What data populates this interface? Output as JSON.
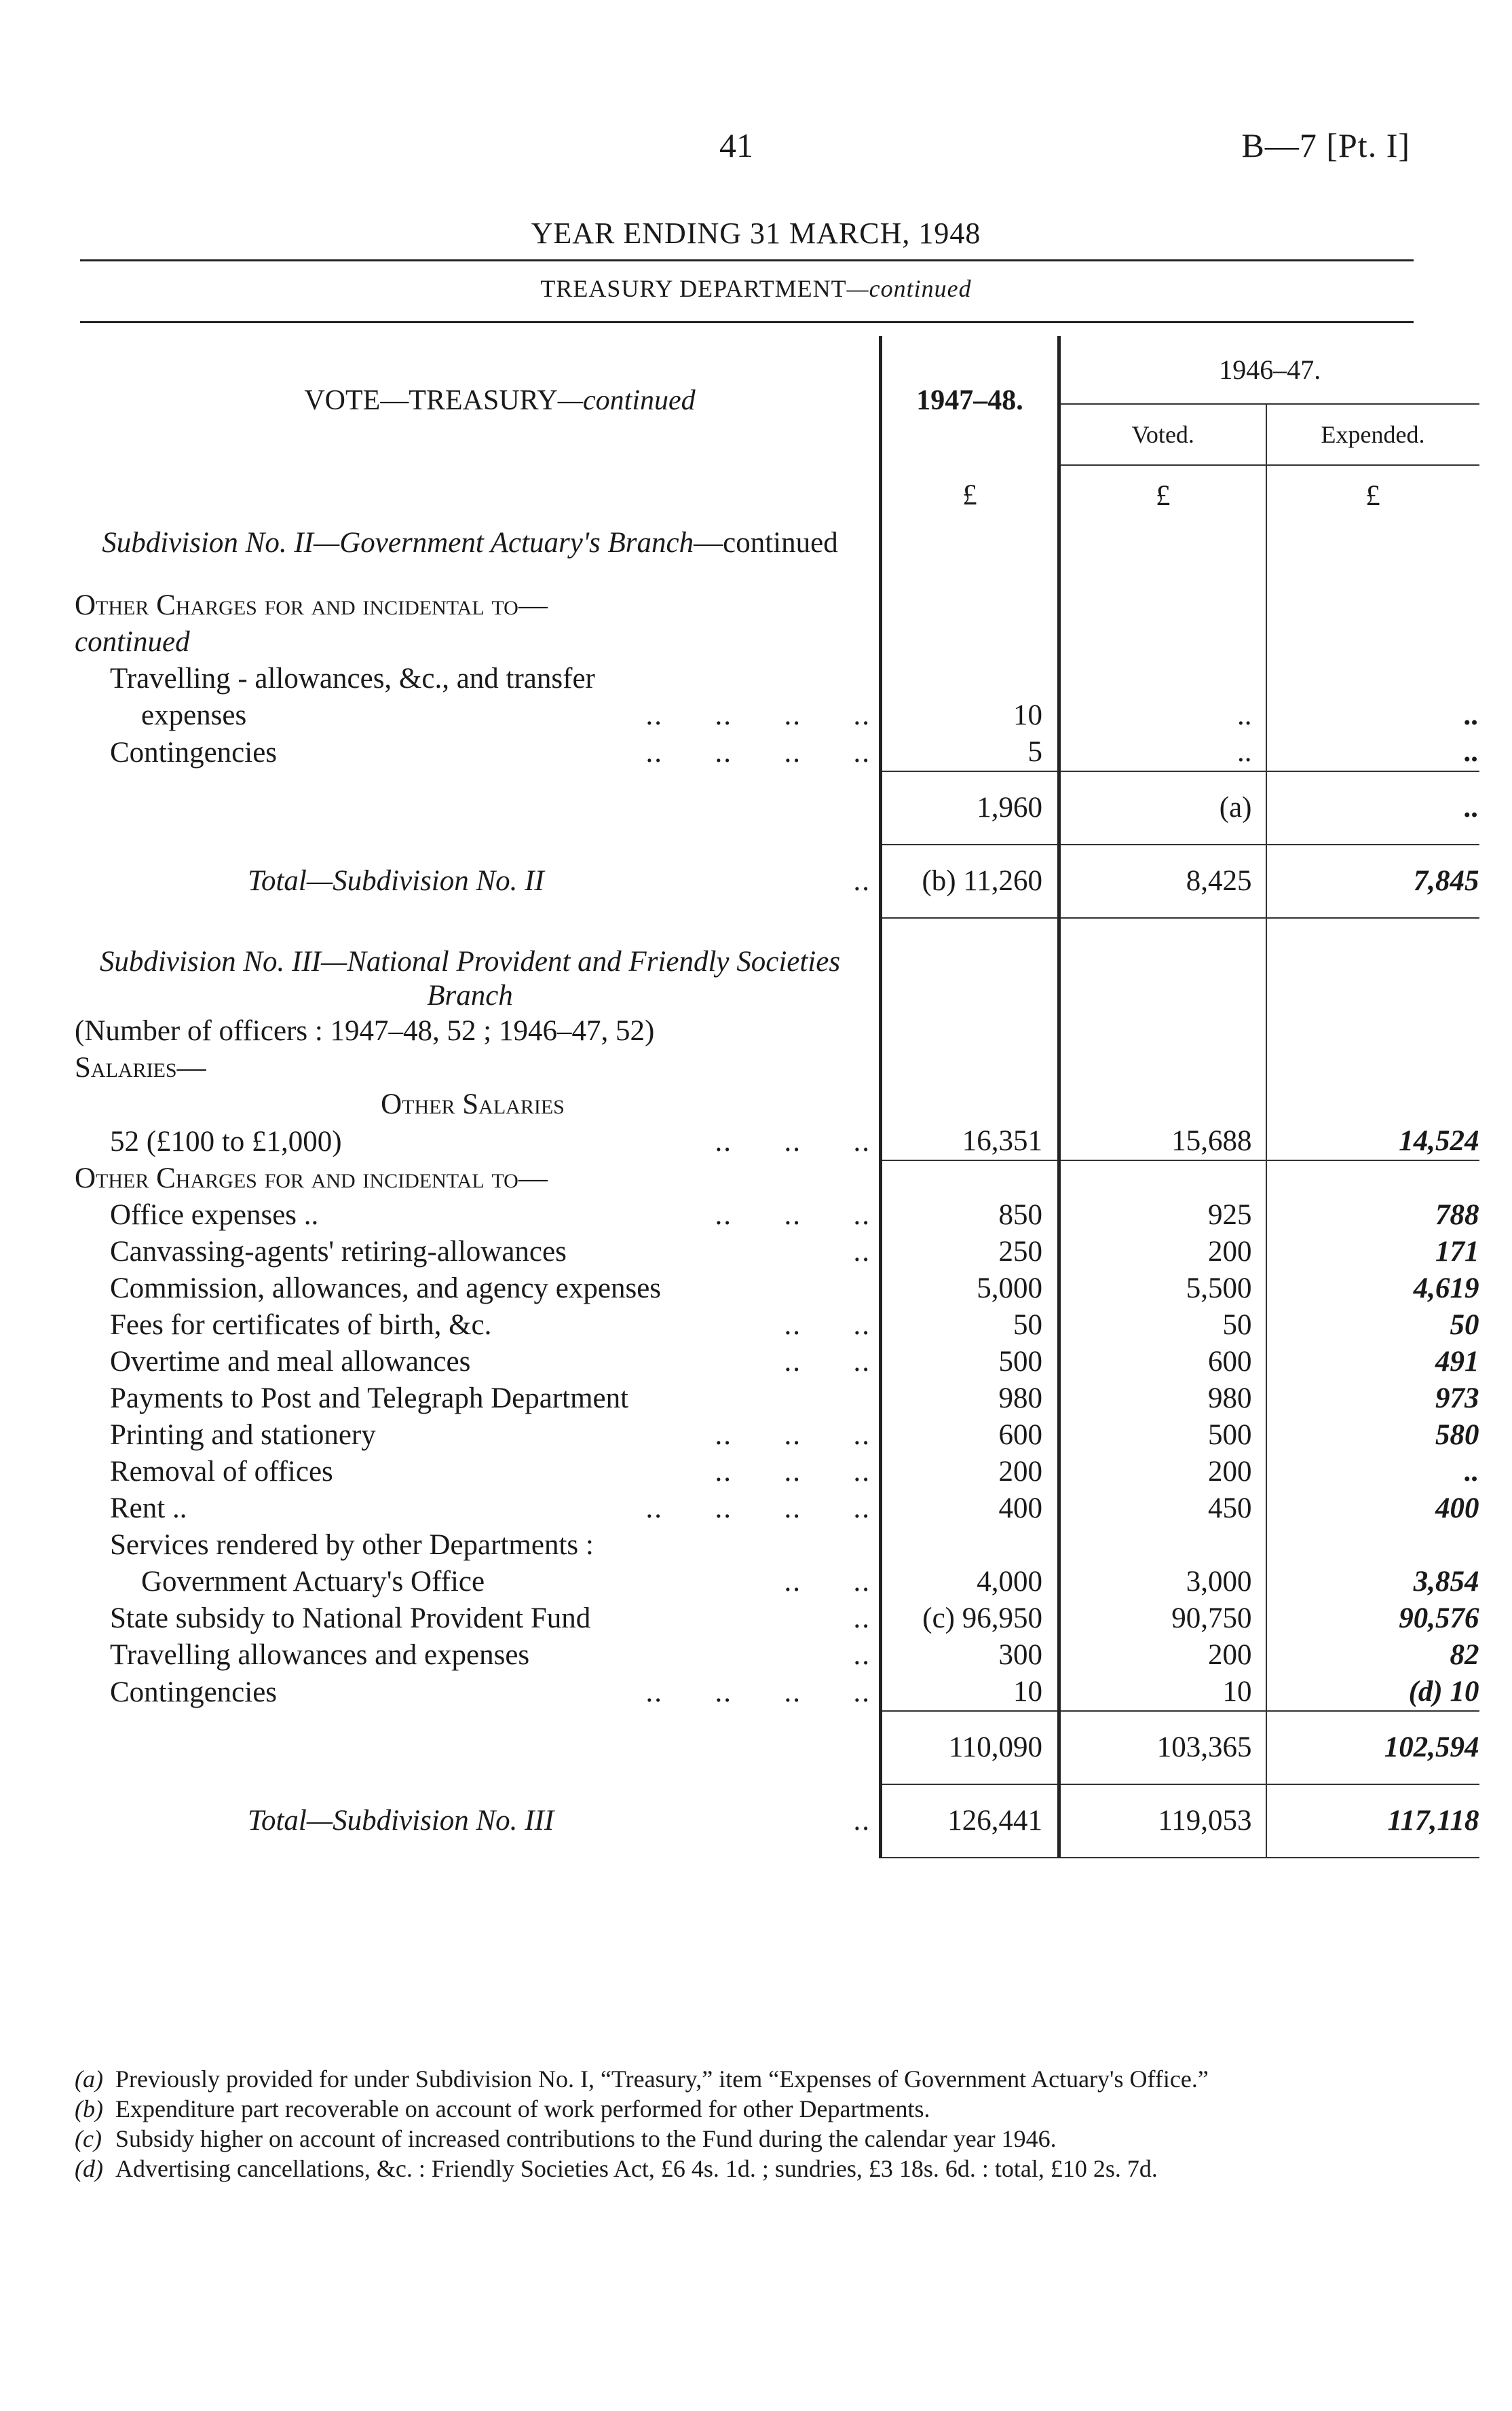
{
  "header": {
    "page_number": "41",
    "reference": "B—7 [Pt. I]",
    "title": "YEAR ENDING 31 MARCH, 1948",
    "department": "TREASURY DEPARTMENT",
    "department_suffix": "—continued"
  },
  "table_header": {
    "vote": "VOTE—TREASURY",
    "vote_suffix": "—continued",
    "col_1947": "1947–48.",
    "col_1946": "1946–47.",
    "voted": "Voted.",
    "expended": "Expended.",
    "currency": [
      "£",
      "£",
      "£"
    ]
  },
  "rows": [
    {
      "type": "heading2",
      "italic": "Subdivision No. II—Government Actuary's Branch",
      "roman": "—continued"
    },
    {
      "type": "gap"
    },
    {
      "type": "smallcaps",
      "label": "Other Charges for and incidental to—"
    },
    {
      "type": "italic1",
      "label": "continued"
    },
    {
      "type": "item",
      "indent": 1,
      "label": "Travelling - allowances, &c., and transfer",
      "leader": "",
      "values": [
        "",
        "",
        ""
      ]
    },
    {
      "type": "item",
      "indent": 2,
      "label": "expenses",
      "leader": "..      ..      ..      ..",
      "values": [
        "10",
        "..",
        ".."
      ]
    },
    {
      "type": "item",
      "indent": 1,
      "label": "Contingencies",
      "leader": "..      ..      ..      ..",
      "values": [
        "5",
        "..",
        ".."
      ]
    },
    {
      "type": "subtotal",
      "label": "",
      "values": [
        "1,960",
        "(a)",
        ".."
      ]
    },
    {
      "type": "total",
      "label": "Total—Subdivision No. II",
      "leader": "..",
      "values": [
        "(b) 11,260",
        "8,425",
        "7,845"
      ]
    },
    {
      "type": "gap"
    },
    {
      "type": "heading2",
      "italic": "Subdivision No. III—National Provident and Friendly Societies Branch",
      "roman": ""
    },
    {
      "type": "plain",
      "label": "(Number of officers : 1947–48, 52 ; 1946–47, 52)"
    },
    {
      "type": "smallcaps",
      "label": "Salaries—"
    },
    {
      "type": "smallcaps-center",
      "label": "Other Salaries"
    },
    {
      "type": "item",
      "indent": 1,
      "ruled": true,
      "label": "52 (£100 to £1,000)",
      "leader": "..      ..      ..",
      "values": [
        "16,351",
        "15,688",
        "14,524"
      ]
    },
    {
      "type": "smallcaps",
      "label": "Other Charges for and incidental to—"
    },
    {
      "type": "item",
      "indent": 1,
      "label": "Office expenses ..",
      "leader": "..      ..      ..",
      "values": [
        "850",
        "925",
        "788"
      ]
    },
    {
      "type": "item",
      "indent": 1,
      "label": "Canvassing-agents' retiring-allowances",
      "leader": "..",
      "values": [
        "250",
        "200",
        "171"
      ]
    },
    {
      "type": "item",
      "indent": 1,
      "label": "Commission, allowances, and agency expenses",
      "leader": "",
      "values": [
        "5,000",
        "5,500",
        "4,619"
      ]
    },
    {
      "type": "item",
      "indent": 1,
      "label": "Fees for certificates of birth, &c.",
      "leader": "..      ..",
      "values": [
        "50",
        "50",
        "50"
      ]
    },
    {
      "type": "item",
      "indent": 1,
      "label": "Overtime and meal allowances",
      "leader": "..      ..",
      "values": [
        "500",
        "600",
        "491"
      ]
    },
    {
      "type": "item",
      "indent": 1,
      "label": "Payments to Post and Telegraph Department",
      "leader": "",
      "values": [
        "980",
        "980",
        "973"
      ]
    },
    {
      "type": "item",
      "indent": 1,
      "label": "Printing and stationery",
      "leader": "..      ..      ..",
      "values": [
        "600",
        "500",
        "580"
      ]
    },
    {
      "type": "item",
      "indent": 1,
      "label": "Removal of offices",
      "leader": "..      ..      ..",
      "values": [
        "200",
        "200",
        ".."
      ]
    },
    {
      "type": "item",
      "indent": 1,
      "label": "Rent ..",
      "leader": "..      ..      ..      ..",
      "values": [
        "400",
        "450",
        "400"
      ]
    },
    {
      "type": "item",
      "indent": 1,
      "label": "Services rendered by other Departments :",
      "leader": "",
      "values": [
        "",
        "",
        ""
      ]
    },
    {
      "type": "item",
      "indent": 2,
      "label": "Government Actuary's Office",
      "leader": "..      ..",
      "values": [
        "4,000",
        "3,000",
        "3,854"
      ]
    },
    {
      "type": "item",
      "indent": 1,
      "label": "State subsidy to National Provident Fund",
      "leader": "..",
      "values": [
        "(c) 96,950",
        "90,750",
        "90,576"
      ]
    },
    {
      "type": "item",
      "indent": 1,
      "label": "Travelling allowances and expenses",
      "leader": "..",
      "values": [
        "300",
        "200",
        "82"
      ]
    },
    {
      "type": "item",
      "indent": 1,
      "label": "Contingencies",
      "leader": "..      ..      ..      ..",
      "values": [
        "10",
        "10",
        "(d) 10"
      ]
    },
    {
      "type": "subtotal",
      "label": "",
      "values": [
        "110,090",
        "103,365",
        "102,594"
      ]
    },
    {
      "type": "total",
      "label": "Total—Subdivision No. III",
      "leader": "..",
      "values": [
        "126,441",
        "119,053",
        "117,118"
      ]
    }
  ],
  "footnotes": [
    {
      "mark": "(a)",
      "text": "Previously provided for under Subdivision No. I, “Treasury,” item “Expenses of Government Actuary's Office.”"
    },
    {
      "mark": "(b)",
      "text": "Expenditure part recoverable on account of work performed for other Departments."
    },
    {
      "mark": "(c)",
      "text": "Subsidy higher on account of increased contributions to the Fund during the calendar year 1946."
    },
    {
      "mark": "(d)",
      "text": "Advertising cancellations, &c. : Friendly Societies Act, £6 4s. 1d. ; sundries, £3 18s. 6d. : total, £10 2s. 7d."
    }
  ]
}
